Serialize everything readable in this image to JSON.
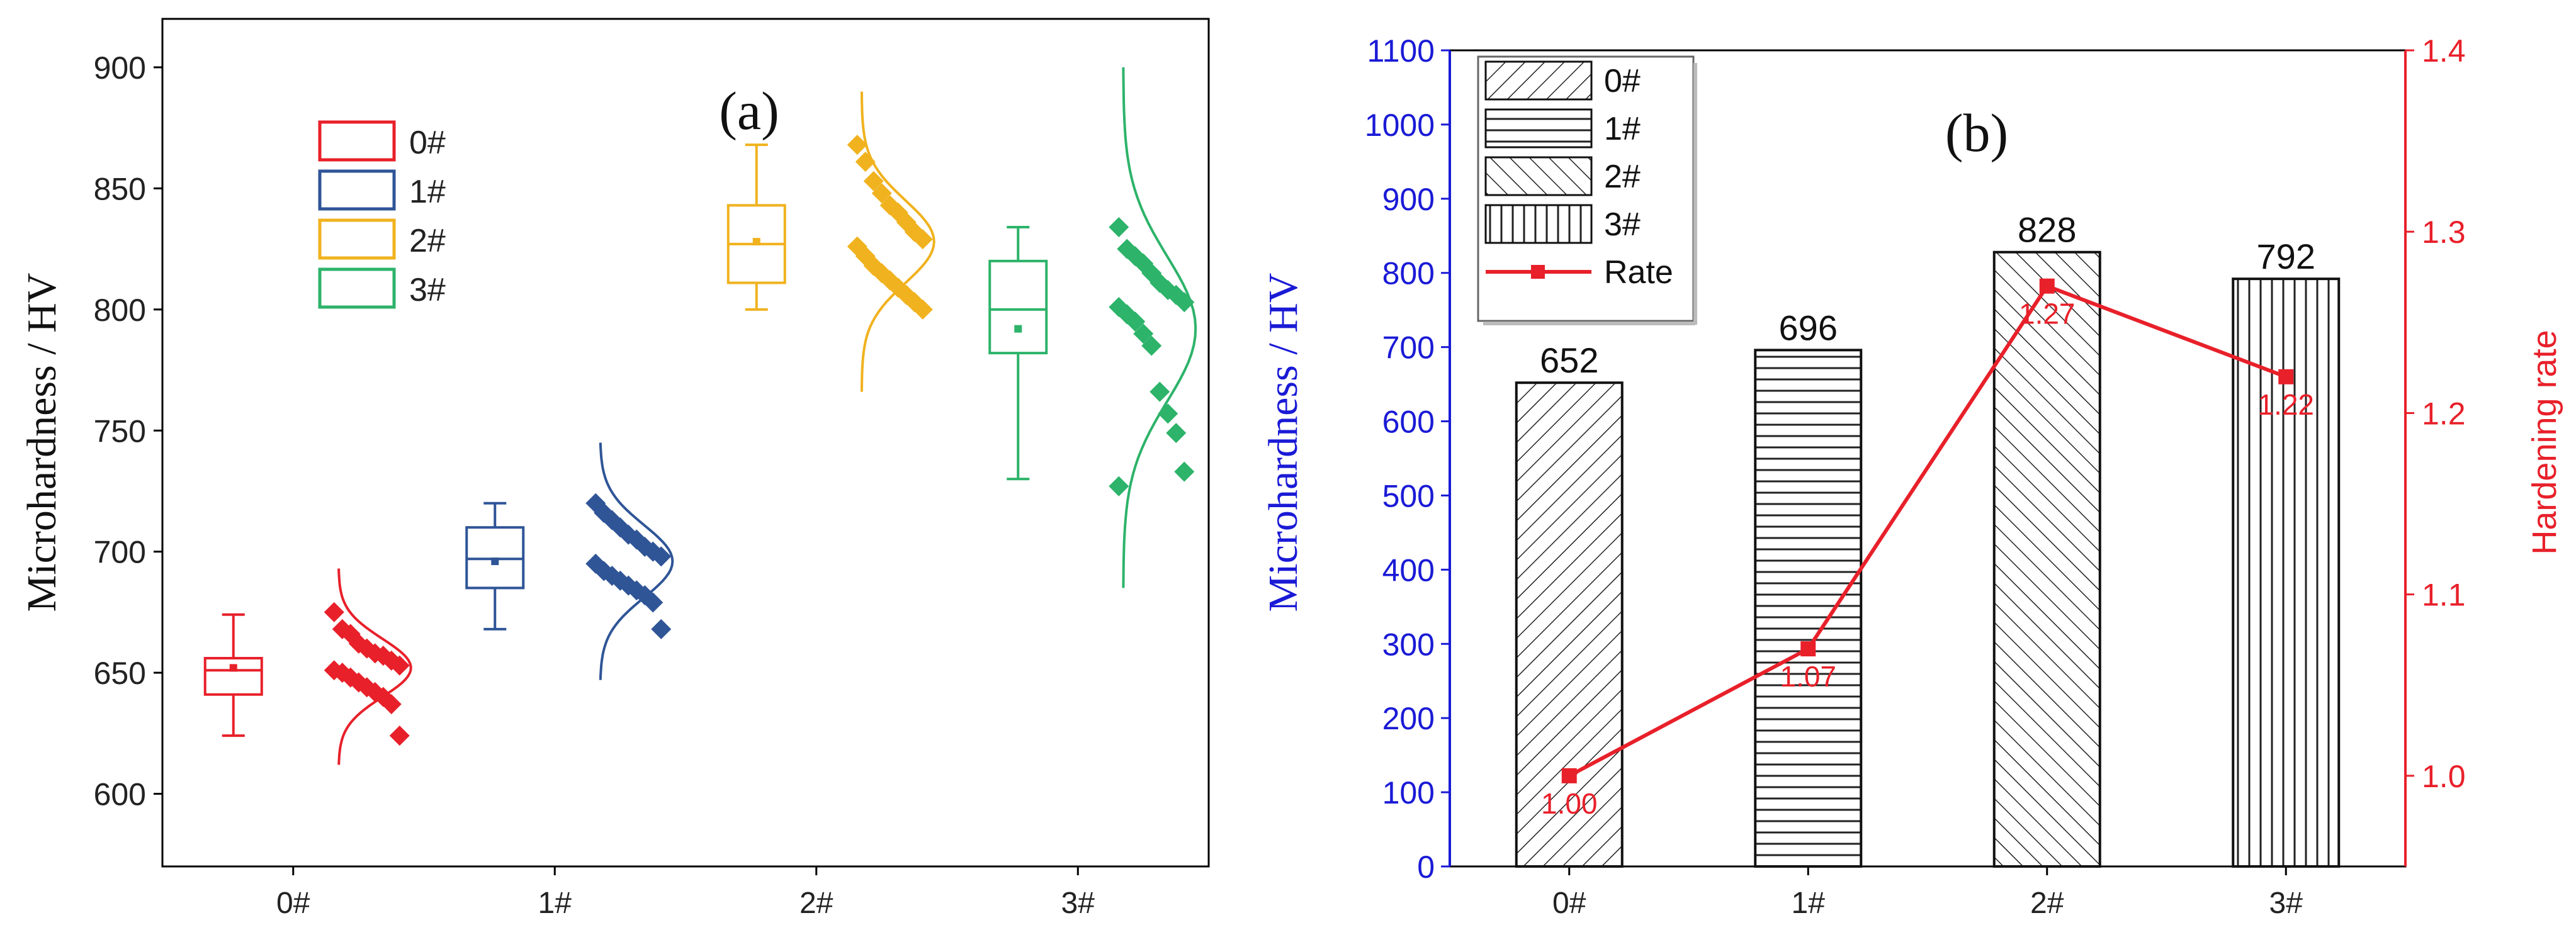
{
  "chart_data": [
    {
      "type": "box",
      "panel_label": "(a)",
      "title": "",
      "ylabel": "Microhardness  / HV",
      "xlabel": "",
      "ylim": [
        570,
        920
      ],
      "yticks": [
        600,
        650,
        700,
        750,
        800,
        850,
        900
      ],
      "categories": [
        "0#",
        "1#",
        "2#",
        "3#"
      ],
      "legend": {
        "position": "top-left",
        "entries": [
          "0#",
          "1#",
          "2#",
          "3#"
        ]
      },
      "colors": [
        "#e8202a",
        "#2f5597",
        "#f0b21e",
        "#2db36a"
      ],
      "series": [
        {
          "name": "0#",
          "box": {
            "whisker_low": 624,
            "q1": 641,
            "median": 651,
            "q3": 656,
            "whisker_high": 674,
            "mean": 652
          },
          "points": [
            675,
            668,
            666,
            662,
            660,
            658,
            657,
            655,
            653,
            651,
            650,
            648,
            646,
            644,
            642,
            640,
            637,
            624
          ],
          "distribution": {
            "min": 612,
            "max": 693,
            "mean": 652,
            "sd": 12
          }
        },
        {
          "name": "1#",
          "box": {
            "whisker_low": 668,
            "q1": 685,
            "median": 697,
            "q3": 710,
            "whisker_high": 720,
            "mean": 696
          },
          "points": [
            720,
            716,
            713,
            710,
            707,
            705,
            702,
            700,
            698,
            695,
            692,
            690,
            688,
            686,
            684,
            682,
            679,
            668
          ],
          "distribution": {
            "min": 647,
            "max": 745,
            "mean": 696,
            "sd": 15
          }
        },
        {
          "name": "2#",
          "box": {
            "whisker_low": 800,
            "q1": 811,
            "median": 827,
            "q3": 843,
            "whisker_high": 868,
            "mean": 828
          },
          "points": [
            868,
            861,
            853,
            848,
            843,
            840,
            836,
            832,
            829,
            826,
            822,
            818,
            815,
            812,
            809,
            806,
            803,
            800
          ],
          "distribution": {
            "min": 766,
            "max": 890,
            "mean": 828,
            "sd": 17
          }
        },
        {
          "name": "3#",
          "box": {
            "whisker_low": 730,
            "q1": 782,
            "median": 800,
            "q3": 820,
            "whisker_high": 834,
            "mean": 792
          },
          "points": [
            834,
            825,
            822,
            819,
            815,
            811,
            808,
            806,
            803,
            801,
            798,
            795,
            790,
            785,
            766,
            757,
            749,
            733,
            727
          ],
          "distribution": {
            "min": 685,
            "max": 900,
            "mean": 792,
            "sd": 30
          }
        }
      ]
    },
    {
      "type": "bar+line",
      "panel_label": "(b)",
      "title": "",
      "xlabel": "",
      "ylabel": "Microhardness  / HV",
      "y2label": "Hardening rate",
      "ylim": [
        0,
        1100
      ],
      "yticks": [
        0,
        100,
        200,
        300,
        400,
        500,
        600,
        700,
        800,
        900,
        1000,
        1100
      ],
      "y2lim": [
        0.95,
        1.4
      ],
      "y2ticks": [
        "1.0",
        "1.1",
        "1.2",
        "1.3",
        "1.4"
      ],
      "categories": [
        "0#",
        "1#",
        "2#",
        "3#"
      ],
      "bar_values": [
        652,
        696,
        828,
        792
      ],
      "bar_labels": [
        "652",
        "696",
        "828",
        "792"
      ],
      "bar_patterns": [
        "diag-right",
        "horizontal",
        "diag-left",
        "vertical"
      ],
      "rate_name": "Rate",
      "rate_values": [
        1.0,
        1.07,
        1.27,
        1.22
      ],
      "rate_labels": [
        "1.00",
        "1.07",
        "1.27",
        "1.22"
      ],
      "legend": {
        "position": "top-left",
        "entries": [
          "0#",
          "1#",
          "2#",
          "3#",
          "Rate"
        ]
      },
      "colors": {
        "left_axis": "#1a1ad6",
        "right_axis": "#e8202a",
        "rate_line": "#e8202a",
        "bars": "#111111"
      }
    }
  ]
}
